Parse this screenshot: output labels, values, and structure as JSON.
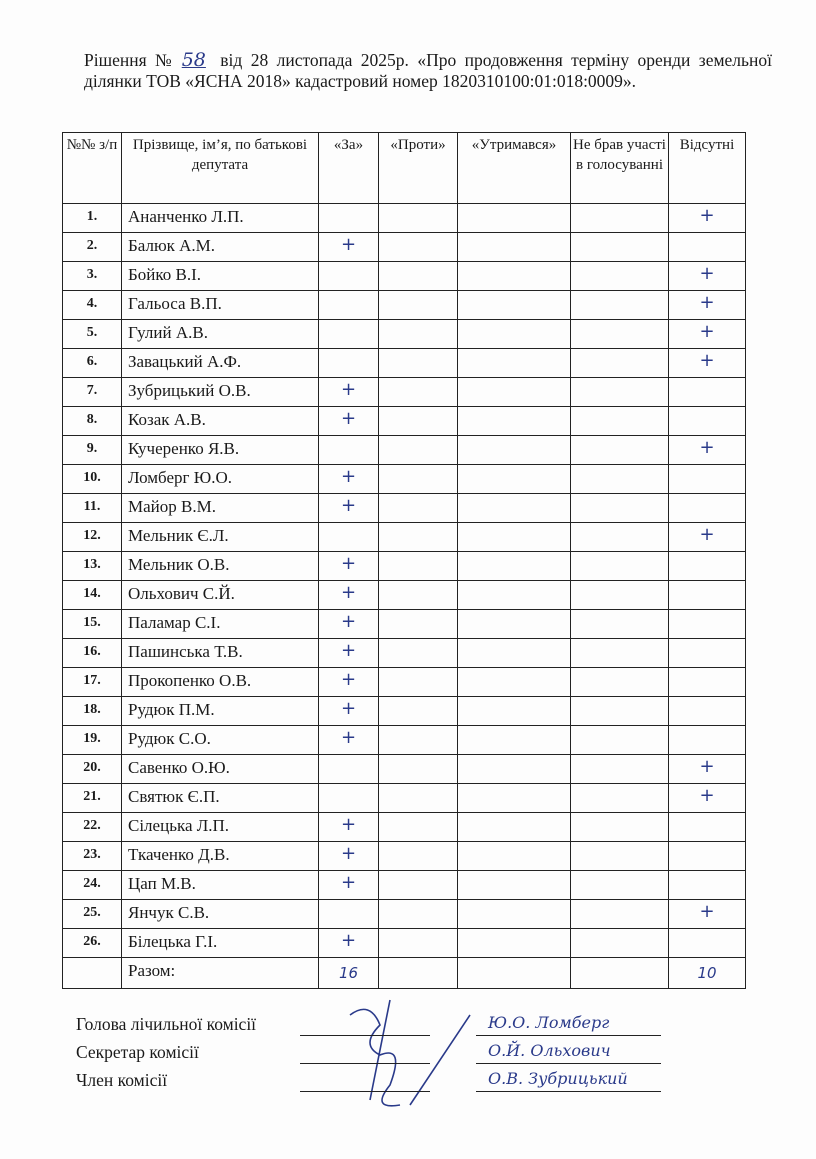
{
  "heading": {
    "prefix": "Рішення №",
    "decision_number": "58",
    "text": "від  28 листопада 2025р. «Про продовження терміну оренди земельної ділянки ТОВ «ЯСНА 2018» кадастровий номер 1820310100:01:018:0009»."
  },
  "table": {
    "headers": [
      "№№ з/п",
      "Прізвище, ім’я, по батькові депутата",
      "«За»",
      "«Проти»",
      "«Утримався»",
      "Не брав участі в голосуванні",
      "Відсутні"
    ],
    "mark": "+",
    "rows": [
      {
        "no": "1.",
        "name": "Ананченко Л.П.",
        "vote": "absent"
      },
      {
        "no": "2.",
        "name": "Балюк А.М.",
        "vote": "for"
      },
      {
        "no": "3.",
        "name": "Бойко В.І.",
        "vote": "absent"
      },
      {
        "no": "4.",
        "name": "Гальоса В.П.",
        "vote": "absent"
      },
      {
        "no": "5.",
        "name": "Гулий А.В.",
        "vote": "absent"
      },
      {
        "no": "6.",
        "name": "Завацький А.Ф.",
        "vote": "absent"
      },
      {
        "no": "7.",
        "name": "Зубрицький О.В.",
        "vote": "for"
      },
      {
        "no": "8.",
        "name": "Козак А.В.",
        "vote": "for"
      },
      {
        "no": "9.",
        "name": "Кучеренко Я.В.",
        "vote": "absent"
      },
      {
        "no": "10.",
        "name": "Ломберг Ю.О.",
        "vote": "for"
      },
      {
        "no": "11.",
        "name": "Майор В.М.",
        "vote": "for"
      },
      {
        "no": "12.",
        "name": "Мельник Є.Л.",
        "vote": "absent"
      },
      {
        "no": "13.",
        "name": "Мельник О.В.",
        "vote": "for"
      },
      {
        "no": "14.",
        "name": "Ольхович С.Й.",
        "vote": "for"
      },
      {
        "no": "15.",
        "name": "Паламар С.І.",
        "vote": "for"
      },
      {
        "no": "16.",
        "name": "Пашинська Т.В.",
        "vote": "for"
      },
      {
        "no": "17.",
        "name": "Прокопенко О.В.",
        "vote": "for"
      },
      {
        "no": "18.",
        "name": "Рудюк П.М.",
        "vote": "for"
      },
      {
        "no": "19.",
        "name": "Рудюк С.О.",
        "vote": "for"
      },
      {
        "no": "20.",
        "name": "Савенко О.Ю.",
        "vote": "absent"
      },
      {
        "no": "21.",
        "name": "Святюк Є.П.",
        "vote": "absent"
      },
      {
        "no": "22.",
        "name": "Сілецька Л.П.",
        "vote": "for"
      },
      {
        "no": "23.",
        "name": "Ткаченко Д.В.",
        "vote": "for"
      },
      {
        "no": "24.",
        "name": "Цап М.В.",
        "vote": "for"
      },
      {
        "no": "25.",
        "name": "Янчук С.В.",
        "vote": "absent"
      },
      {
        "no": "26.",
        "name": "Білецька Г.І.",
        "vote": "for"
      }
    ],
    "total_label": "Разом:",
    "totals": {
      "for": "16",
      "against": "",
      "abstained": "",
      "not_voted": "",
      "absent": "10"
    }
  },
  "signatures": [
    {
      "role": "Голова лічильної комісії",
      "name": "Ю.О. Ломберг"
    },
    {
      "role": "Секретар комісії",
      "name": "О.Й. Ольхович"
    },
    {
      "role": "Член комісії",
      "name": "О.В. Зубрицький"
    }
  ]
}
